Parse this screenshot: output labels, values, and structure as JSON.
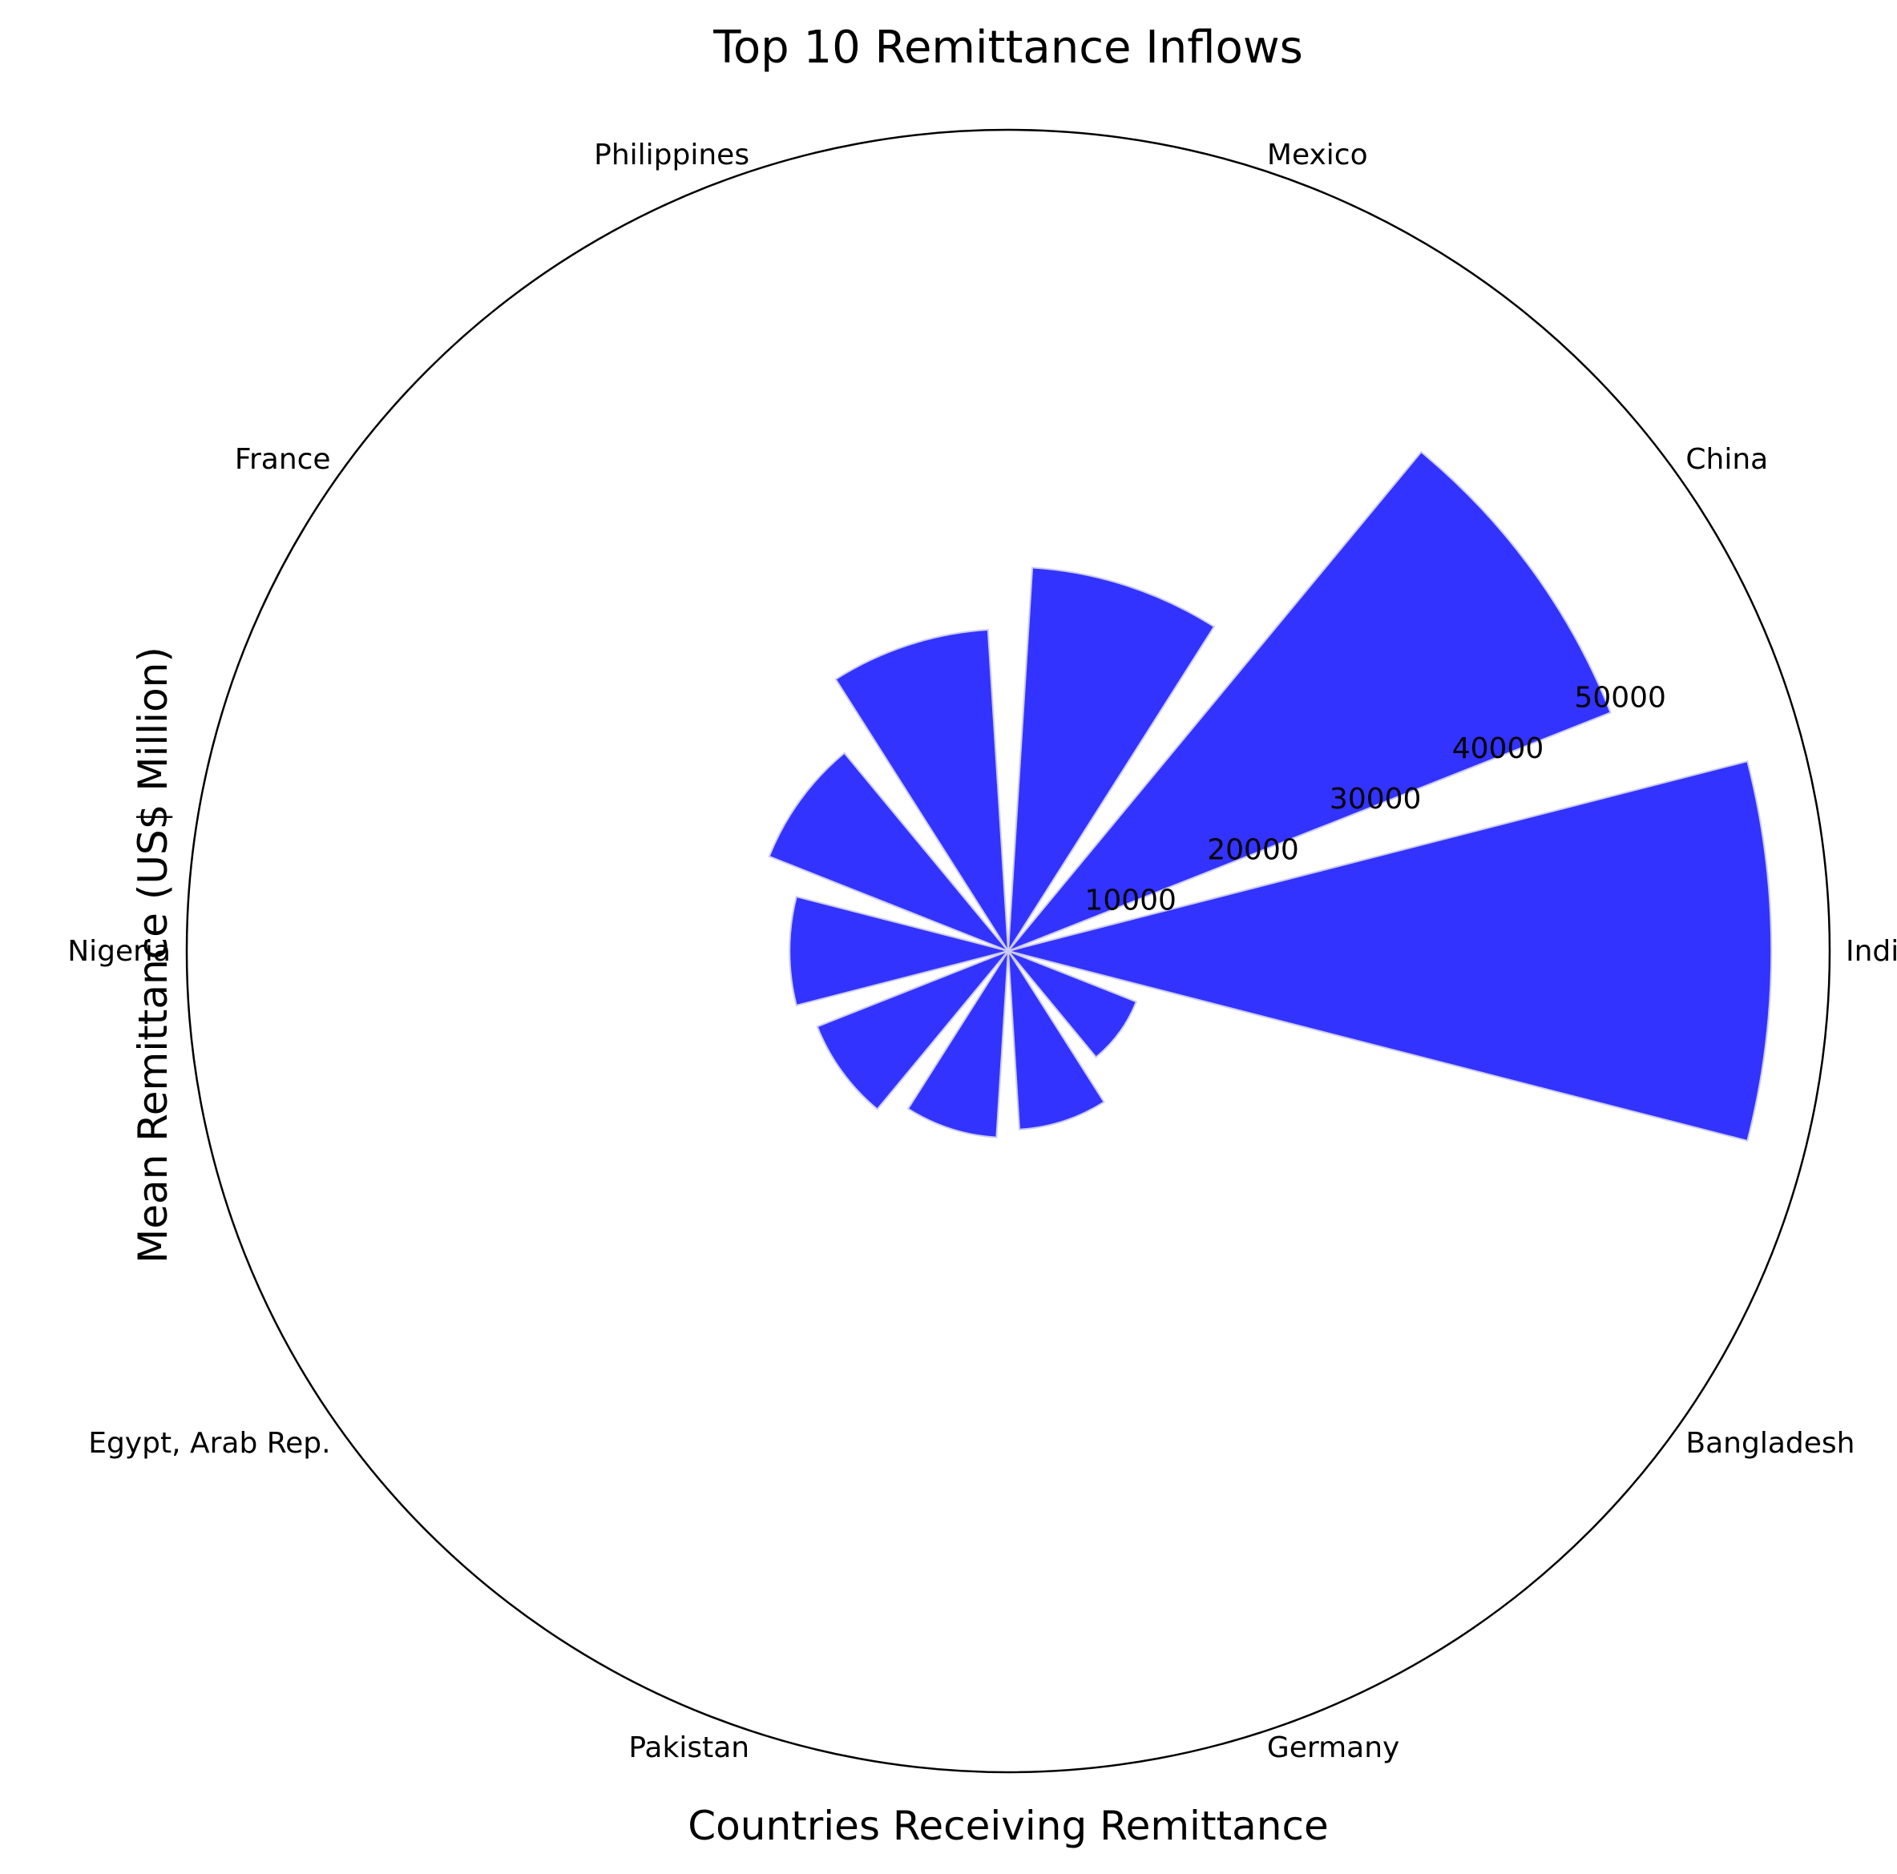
{
  "chart_data": {
    "type": "bar",
    "polar": true,
    "title": "Top 10 Remittance Inflows",
    "xlabel": "Countries Receiving Remittance",
    "ylabel": "Mean Remittance (US$ Million)",
    "categories": [
      "India",
      "China",
      "Mexico",
      "Philippines",
      "France",
      "Nigeria",
      "Egypt, Arab Rep.",
      "Pakistan",
      "Germany",
      "Bangladesh"
    ],
    "values": [
      57600,
      48900,
      29000,
      24300,
      19400,
      16500,
      15500,
      14100,
      13500,
      10400
    ],
    "rlim": [
      0,
      62000
    ],
    "rticks": [
      10000,
      20000,
      30000,
      40000,
      50000
    ],
    "grid": false,
    "bar_color": "#3333ff",
    "bar_edge_color": "#ccccee"
  }
}
